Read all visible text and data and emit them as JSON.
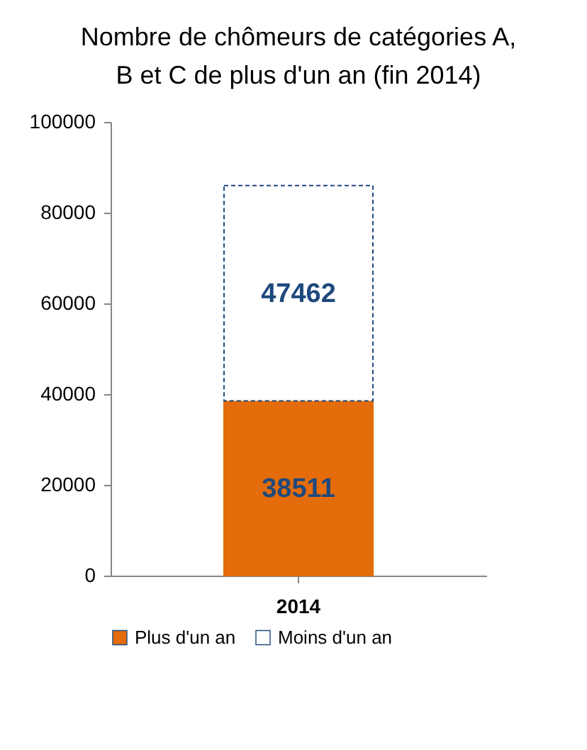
{
  "chart_data": {
    "type": "bar",
    "title": "Nombre de chômeurs de catégories A, B et C de plus d'un an (fin 2014)",
    "categories": [
      "2014"
    ],
    "stacked": true,
    "data_labels": true,
    "legend": "bottom",
    "ylim": [
      0,
      100000
    ],
    "yticks": [
      0,
      20000,
      40000,
      60000,
      80000,
      100000
    ],
    "series": [
      {
        "name": "Plus d'un an",
        "color": "#e46c0a",
        "values": [
          38511
        ]
      },
      {
        "name": "Moins d'un an",
        "color": "#ffffff",
        "values": [
          47462
        ],
        "line_style": "dashed"
      }
    ]
  }
}
